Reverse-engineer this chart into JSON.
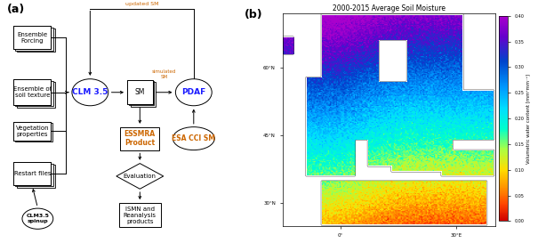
{
  "map_title": "2000-2015 Average Soil Moisture",
  "colorbar_label": "Volumetric water content [mm³mm⁻³]",
  "updated_sm_color": "#cc6600",
  "simulated_sm_color": "#cc6600",
  "colorbar_vmin": 0.0,
  "colorbar_vmax": 0.4,
  "colorbar_ticks": [
    0.0,
    0.05,
    0.1,
    0.15,
    0.2,
    0.25,
    0.3,
    0.35,
    0.4
  ],
  "colorbar_ticklabels": [
    "0.00",
    "0.05",
    "0.10",
    "0.15",
    "0.20",
    "0.25",
    "0.30",
    "0.35",
    "0.40"
  ],
  "map_xticks": [
    0,
    30
  ],
  "map_xticklabels": [
    "0°",
    "30°E"
  ],
  "map_yticks": [
    30,
    45,
    60
  ],
  "map_yticklabels": [
    "30°N",
    "45°N",
    "60°N"
  ]
}
